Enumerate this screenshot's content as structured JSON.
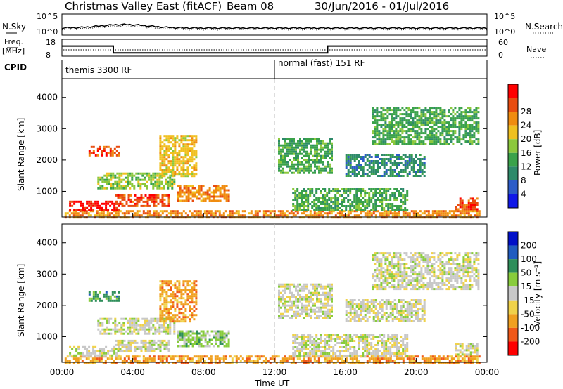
{
  "header": {
    "station": "Christmas Valley East (fitACF)",
    "beam": "Beam 08",
    "dates": "30/Jun/2016 - 01/Jul/2016"
  },
  "strip_sky": {
    "left_label": "N.Sky",
    "right_label": "N.Search",
    "ticks_left": [
      "10^5",
      "10^0"
    ],
    "ticks_right": [
      "10^5",
      "10^0"
    ]
  },
  "strip_freq": {
    "left_label_1": "Freq.",
    "left_label_2": "[MHz]",
    "right_label": "Nave",
    "ticks_left": [
      "18",
      "8"
    ],
    "ticks_right": [
      "60",
      "0"
    ]
  },
  "cpid": {
    "label": "CPID",
    "segments": [
      {
        "name": "themis 3300 RF",
        "start_h": 0
      },
      {
        "name": "normal (fast) 151 RF",
        "start_h": 12
      }
    ]
  },
  "panels": {
    "power": {
      "ylabel": "Slant Range [km]",
      "yticks": [
        "1000",
        "2000",
        "3000",
        "4000"
      ],
      "colorbar_label": "Power [dB]",
      "colorbar_ticks": [
        "4",
        "8",
        "12",
        "16",
        "20",
        "24",
        "28"
      ]
    },
    "velocity": {
      "ylabel": "Slant Range [km]",
      "yticks": [
        "1000",
        "2000",
        "3000",
        "4000"
      ],
      "colorbar_label": "Velocity [m s⁻¹]",
      "colorbar_ticks": [
        "200",
        "100",
        "50",
        "15",
        "-15",
        "-50",
        "-100",
        "-200"
      ]
    }
  },
  "xaxis": {
    "label": "Time UT",
    "ticks": [
      "00:00",
      "04:00",
      "08:00",
      "12:00",
      "16:00",
      "20:00",
      "00:00"
    ]
  },
  "chart_data": {
    "type": "heatmap",
    "x_range_hours": [
      0,
      24
    ],
    "y_range_km": [
      180,
      4600
    ],
    "grid": false,
    "freq_mhz": [
      {
        "from_h": 0,
        "to_h": 2.9,
        "value": 14
      },
      {
        "from_h": 2.9,
        "to_h": 15,
        "value": 10
      },
      {
        "from_h": 15,
        "to_h": 24,
        "value": 14
      }
    ],
    "power_colors": [
      "#1018e8",
      "#2c5cc8",
      "#2e8a6a",
      "#3aa24a",
      "#8cc83c",
      "#f0c020",
      "#f08c10",
      "#e84c10",
      "#ff0000"
    ],
    "velocity_colors": [
      "#0010c8",
      "#205cc0",
      "#2e8e5a",
      "#88cc3c",
      "#c8c8c8",
      "#f0d24a",
      "#f0a020",
      "#f05818",
      "#ff0000"
    ],
    "regions": [
      {
        "t0": 0.15,
        "t1": 23.6,
        "r0": 180,
        "r1": 400,
        "power": 6,
        "velocity": 6
      },
      {
        "t0": 0.4,
        "t1": 3.2,
        "r0": 400,
        "r1": 700,
        "power": 8,
        "velocity": 4
      },
      {
        "t0": 3.0,
        "t1": 6.0,
        "r0": 550,
        "r1": 900,
        "power": 7,
        "velocity": 4
      },
      {
        "t0": 6.5,
        "t1": 9.4,
        "r0": 700,
        "r1": 1200,
        "power": 6,
        "velocity": 3
      },
      {
        "t0": 2.0,
        "t1": 6.4,
        "r0": 1100,
        "r1": 1600,
        "power": 4,
        "velocity": 4
      },
      {
        "t0": 1.5,
        "t1": 3.2,
        "r0": 2150,
        "r1": 2450,
        "power": 7,
        "velocity": 2
      },
      {
        "t0": 5.5,
        "t1": 7.6,
        "r0": 1500,
        "r1": 2800,
        "power": 5,
        "velocity": 6
      },
      {
        "t0": 12.2,
        "t1": 15.2,
        "r0": 1600,
        "r1": 2700,
        "power": 3,
        "velocity": 4
      },
      {
        "t0": 13.0,
        "t1": 19.5,
        "r0": 400,
        "r1": 1100,
        "power": 3,
        "velocity": 4
      },
      {
        "t0": 16.0,
        "t1": 20.5,
        "r0": 1500,
        "r1": 2200,
        "power": 2,
        "velocity": 4
      },
      {
        "t0": 17.5,
        "t1": 23.5,
        "r0": 2500,
        "r1": 3700,
        "power": 3,
        "velocity": 4
      },
      {
        "t0": 22.2,
        "t1": 23.4,
        "r0": 400,
        "r1": 800,
        "power": 7,
        "velocity": 4
      }
    ]
  }
}
